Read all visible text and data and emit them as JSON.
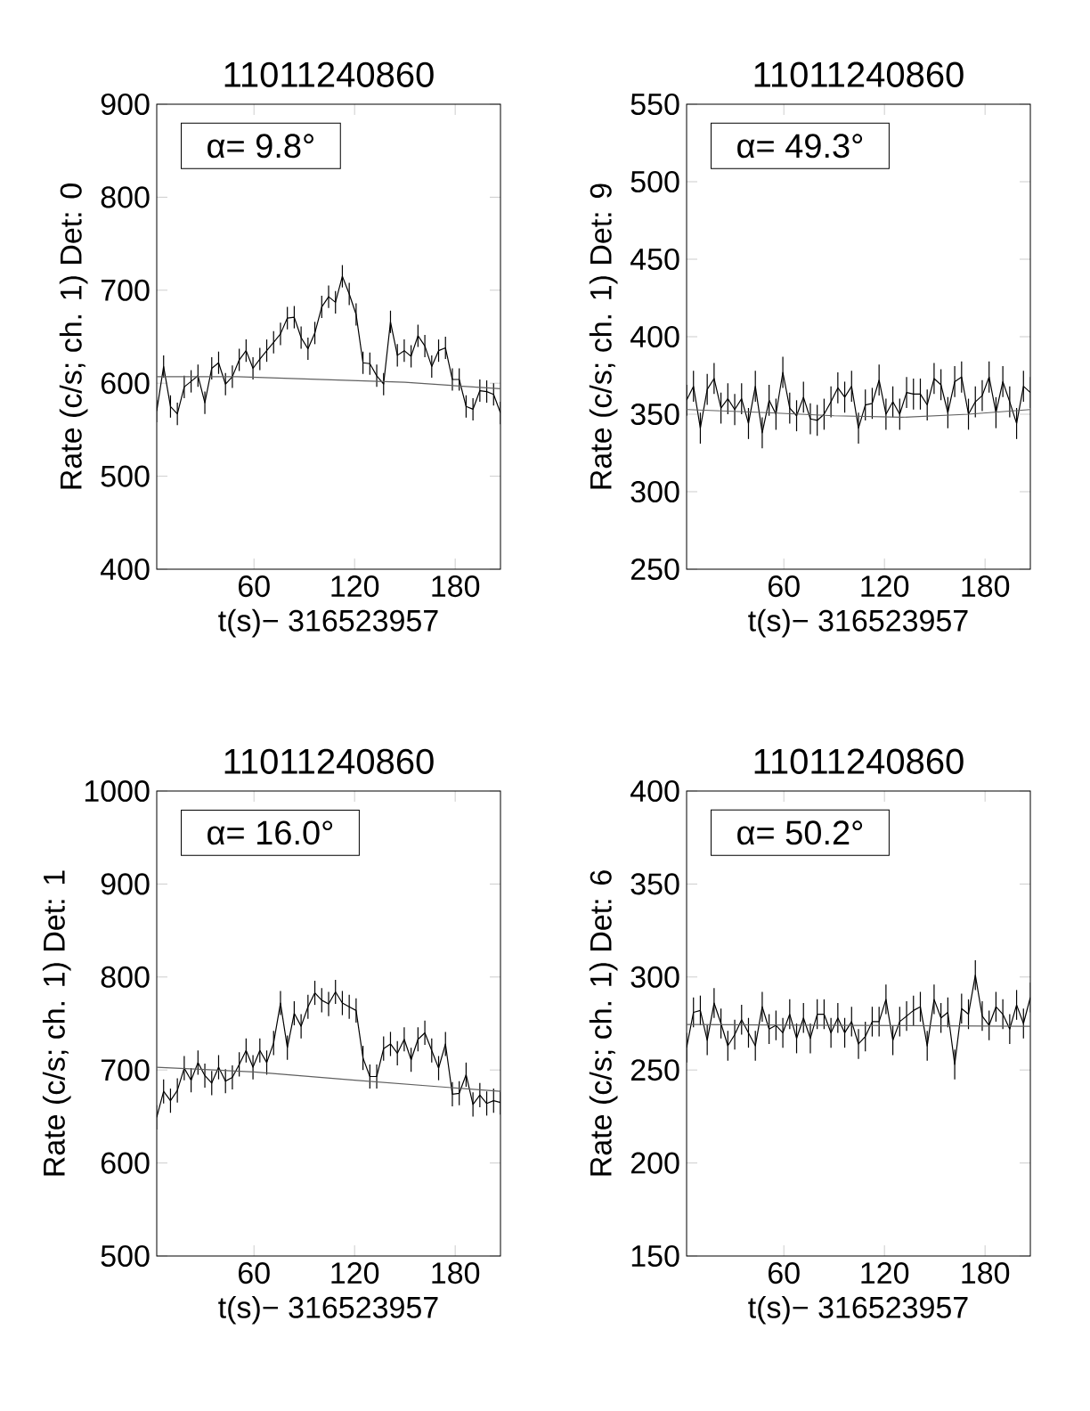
{
  "chart_data": [
    {
      "type": "line",
      "title": "11011240860",
      "xlabel": "t(s)− 316523957",
      "ylabel": "Rate (c/s; ch. 1) Det: 0",
      "annotations": [
        "α= 9.8°"
      ],
      "xlim": [
        2,
        207
      ],
      "ylim": [
        400,
        900
      ],
      "xticks": [
        60,
        120,
        180
      ],
      "yticks": [
        400,
        500,
        600,
        700,
        800,
        900
      ],
      "x": [
        2,
        6.1,
        10.2,
        14.3,
        18.4,
        22.5,
        26.6,
        30.7,
        34.8,
        38.9,
        43,
        47.1,
        51.2,
        55.3,
        59.4,
        63.5,
        67.6,
        71.7,
        75.8,
        79.9,
        84,
        88.1,
        92.2,
        96.3,
        100.4,
        104.5,
        108.6,
        112.7,
        116.8,
        120.9,
        125,
        129.1,
        133.2,
        137.3,
        141.4,
        145.5,
        149.6,
        153.7,
        157.8,
        161.9,
        166,
        170.1,
        174.2,
        178.3,
        182.4,
        186.5,
        190.6,
        194.7,
        198.8,
        202.9,
        207
      ],
      "series": [
        {
          "color": "#000000",
          "values": [
            570,
            618,
            575,
            567,
            596,
            602,
            608,
            579,
            616,
            622,
            599,
            607,
            625,
            635,
            616,
            626,
            635,
            644,
            653,
            670,
            671,
            649,
            637,
            654,
            682,
            693,
            687,
            715,
            696,
            674,
            622,
            621,
            608,
            599,
            666,
            630,
            635,
            629,
            651,
            640,
            618,
            635,
            638,
            604,
            604,
            575,
            572,
            592,
            591,
            588,
            568
          ],
          "errors": [
            12,
            12,
            12,
            12,
            12,
            12,
            12,
            12,
            12,
            12,
            12,
            12,
            12,
            12,
            12,
            12,
            12,
            12,
            12,
            12,
            12,
            12,
            12,
            12,
            12,
            12,
            12,
            12,
            12,
            12,
            12,
            12,
            12,
            12,
            12,
            12,
            12,
            12,
            12,
            12,
            12,
            12,
            12,
            12,
            12,
            12,
            12,
            12,
            12,
            12,
            12
          ]
        },
        {
          "type": "line",
          "color": "#606060",
          "x": [
            2,
            50,
            100,
            150,
            207
          ],
          "values": [
            607,
            607,
            604,
            601,
            594
          ]
        }
      ]
    },
    {
      "type": "line",
      "title": "11011240860",
      "xlabel": "t(s)− 316523957",
      "ylabel": "Rate (c/s; ch. 1) Det: 9",
      "annotations": [
        "α= 49.3°"
      ],
      "xlim": [
        2,
        207
      ],
      "ylim": [
        250,
        550
      ],
      "xticks": [
        60,
        120,
        180
      ],
      "yticks": [
        250,
        300,
        350,
        400,
        450,
        500,
        550
      ],
      "x": [
        2,
        6.1,
        10.2,
        14.3,
        18.4,
        22.5,
        26.6,
        30.7,
        34.8,
        38.9,
        43,
        47.1,
        51.2,
        55.3,
        59.4,
        63.5,
        67.6,
        71.7,
        75.8,
        79.9,
        84,
        88.1,
        92.2,
        96.3,
        100.4,
        104.5,
        108.6,
        112.7,
        116.8,
        120.9,
        125,
        129.1,
        133.2,
        137.3,
        141.4,
        145.5,
        149.6,
        153.7,
        157.8,
        161.9,
        166,
        170.1,
        174.2,
        178.3,
        182.4,
        186.5,
        190.6,
        194.7,
        198.8,
        202.9,
        207
      ],
      "series": [
        {
          "color": "#000000",
          "values": [
            359,
            368,
            341,
            366,
            373,
            354,
            360,
            353,
            360,
            344,
            368,
            338,
            359,
            350,
            377,
            354,
            349,
            361,
            347,
            346,
            350,
            358,
            367,
            361,
            368,
            341,
            356,
            357,
            372,
            350,
            358,
            350,
            364,
            363,
            363,
            356,
            373,
            369,
            351,
            371,
            374,
            350,
            358,
            362,
            374,
            351,
            371,
            358,
            344,
            368,
            364
          ],
          "errors": [
            10,
            10,
            10,
            10,
            10,
            10,
            10,
            10,
            10,
            10,
            10,
            10,
            10,
            10,
            10,
            10,
            10,
            10,
            10,
            10,
            10,
            10,
            10,
            10,
            10,
            10,
            10,
            10,
            10,
            10,
            10,
            10,
            10,
            10,
            10,
            10,
            10,
            10,
            10,
            10,
            10,
            10,
            10,
            10,
            10,
            10,
            10,
            10,
            10,
            10,
            10
          ]
        },
        {
          "type": "line",
          "color": "#606060",
          "x": [
            2,
            50,
            90,
            130,
            170,
            207
          ],
          "values": [
            353,
            351,
            349,
            348,
            350,
            353
          ]
        }
      ]
    },
    {
      "type": "line",
      "title": "11011240860",
      "xlabel": "t(s)− 316523957",
      "ylabel": "Rate (c/s; ch. 1) Det: 1",
      "annotations": [
        "α= 16.0°"
      ],
      "xlim": [
        2,
        207
      ],
      "ylim": [
        500,
        1000
      ],
      "xticks": [
        60,
        120,
        180
      ],
      "yticks": [
        500,
        600,
        700,
        800,
        900,
        1000
      ],
      "x": [
        2,
        6.1,
        10.2,
        14.3,
        18.4,
        22.5,
        26.6,
        30.7,
        34.8,
        38.9,
        43,
        47.1,
        51.2,
        55.3,
        59.4,
        63.5,
        67.6,
        71.7,
        75.8,
        79.9,
        84,
        88.1,
        92.2,
        96.3,
        100.4,
        104.5,
        108.6,
        112.7,
        116.8,
        120.9,
        125,
        129.1,
        133.2,
        137.3,
        141.4,
        145.5,
        149.6,
        153.7,
        157.8,
        161.9,
        166,
        170.1,
        174.2,
        178.3,
        182.4,
        186.5,
        190.6,
        194.7,
        198.8,
        202.9,
        207
      ],
      "series": [
        {
          "color": "#000000",
          "values": [
            649,
            677,
            667,
            678,
            702,
            689,
            708,
            694,
            686,
            703,
            688,
            692,
            706,
            721,
            703,
            721,
            708,
            729,
            772,
            724,
            761,
            747,
            768,
            783,
            775,
            771,
            784,
            772,
            768,
            764,
            713,
            693,
            693,
            723,
            728,
            718,
            733,
            711,
            733,
            740,
            721,
            702,
            728,
            674,
            675,
            695,
            663,
            673,
            664,
            667,
            665
          ],
          "errors": [
            13,
            13,
            13,
            13,
            13,
            13,
            13,
            13,
            13,
            13,
            13,
            13,
            13,
            13,
            13,
            13,
            13,
            13,
            13,
            13,
            13,
            13,
            13,
            13,
            13,
            13,
            13,
            13,
            13,
            13,
            13,
            13,
            13,
            13,
            13,
            13,
            13,
            13,
            13,
            13,
            13,
            13,
            13,
            13,
            13,
            13,
            13,
            13,
            13,
            13,
            13
          ]
        },
        {
          "type": "line",
          "color": "#606060",
          "x": [
            2,
            60,
            120,
            207
          ],
          "values": [
            703,
            698,
            689,
            677
          ]
        }
      ]
    },
    {
      "type": "line",
      "title": "11011240860",
      "xlabel": "t(s)− 316523957",
      "ylabel": "Rate (c/s; ch. 1) Det: 6",
      "annotations": [
        "α= 50.2°"
      ],
      "xlim": [
        2,
        207
      ],
      "ylim": [
        150,
        400
      ],
      "xticks": [
        60,
        120,
        180
      ],
      "yticks": [
        150,
        200,
        250,
        300,
        350,
        400
      ],
      "x": [
        2,
        6.1,
        10.2,
        14.3,
        18.4,
        22.5,
        26.6,
        30.7,
        34.8,
        38.9,
        43,
        47.1,
        51.2,
        55.3,
        59.4,
        63.5,
        67.6,
        71.7,
        75.8,
        79.9,
        84,
        88.1,
        92.2,
        96.3,
        100.4,
        104.5,
        108.6,
        112.7,
        116.8,
        120.9,
        125,
        129.1,
        133.2,
        137.3,
        141.4,
        145.5,
        149.6,
        153.7,
        157.8,
        161.9,
        166,
        170.1,
        174.2,
        178.3,
        182.4,
        186.5,
        190.6,
        194.7,
        198.8,
        202.9,
        207
      ],
      "series": [
        {
          "color": "#000000",
          "values": [
            262,
            281,
            282,
            266,
            286,
            275,
            263,
            269,
            277,
            270,
            263,
            284,
            272,
            274,
            270,
            280,
            267,
            278,
            267,
            280,
            280,
            270,
            278,
            270,
            276,
            264,
            268,
            276,
            276,
            288,
            266,
            276,
            279,
            282,
            284,
            263,
            288,
            278,
            281,
            253,
            283,
            280,
            301,
            279,
            274,
            284,
            280,
            272,
            285,
            275,
            289
          ],
          "errors": [
            8,
            8,
            8,
            8,
            8,
            8,
            8,
            8,
            8,
            8,
            8,
            8,
            8,
            8,
            8,
            8,
            8,
            8,
            8,
            8,
            8,
            8,
            8,
            8,
            8,
            8,
            8,
            8,
            8,
            8,
            8,
            8,
            8,
            8,
            8,
            8,
            8,
            8,
            8,
            8,
            8,
            8,
            8,
            8,
            8,
            8,
            8,
            8,
            8,
            8,
            8
          ]
        },
        {
          "type": "line",
          "color": "#606060",
          "x": [
            2,
            100,
            207
          ],
          "values": [
            274.5,
            274,
            273.5
          ]
        }
      ]
    }
  ]
}
